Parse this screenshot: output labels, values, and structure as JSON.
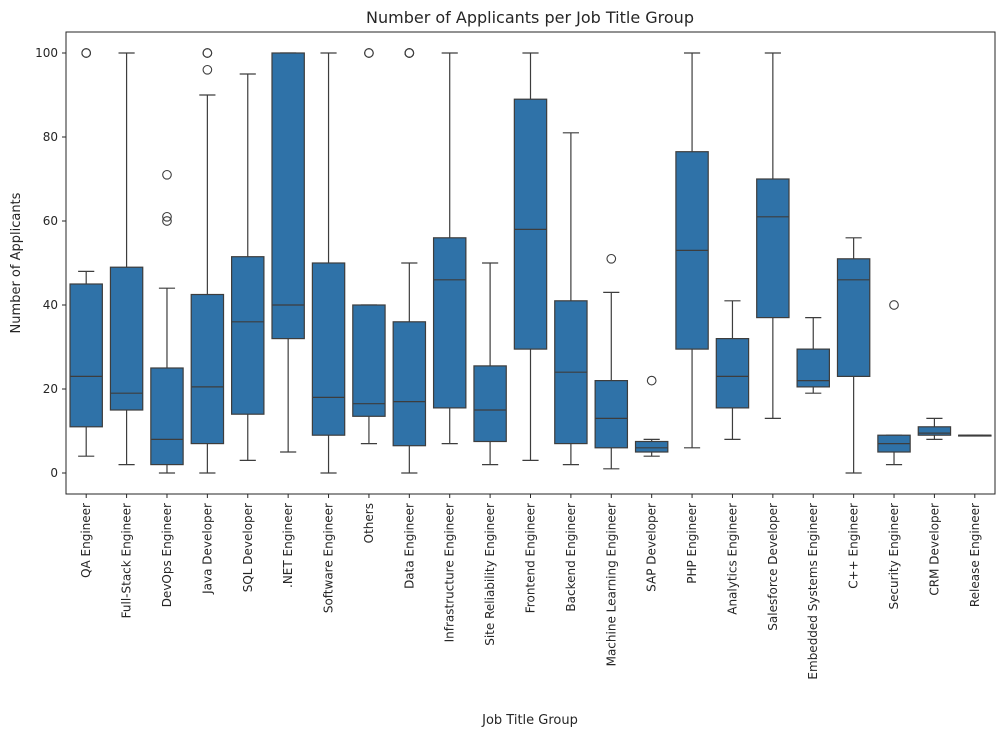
{
  "chart_data": {
    "type": "box",
    "title": "Number of Applicants per Job Title Group",
    "xlabel": "Job Title Group",
    "ylabel": "Number of Applicants",
    "ylim": [
      -5,
      105
    ],
    "yticks": [
      0,
      20,
      40,
      60,
      80,
      100
    ],
    "grid": false,
    "colors": {
      "box": "#2f72a8",
      "edge": "#3d3d3d",
      "background": "#ffffff"
    },
    "categories": [
      "QA Engineer",
      "Full-Stack Engineer",
      "DevOps Engineer",
      "Java Developer",
      "SQL Developer",
      ".NET Engineer",
      "Software Engineer",
      "Others",
      "Data Engineer",
      "Infrastructure Engineer",
      "Site Reliability Engineer",
      "Frontend Engineer",
      "Backend Engineer",
      "Machine Learning Engineer",
      "SAP Developer",
      "PHP Engineer",
      "Analytics Engineer",
      "Salesforce Developer",
      "Embedded Systems Engineer",
      "C++ Engineer",
      "Security Engineer",
      "CRM Developer",
      "Release Engineer"
    ],
    "boxes": [
      {
        "whislo": 4,
        "q1": 11,
        "med": 23,
        "q3": 45,
        "whishi": 48,
        "fliers": [
          100,
          100
        ]
      },
      {
        "whislo": 2,
        "q1": 15,
        "med": 19,
        "q3": 49,
        "whishi": 100,
        "fliers": []
      },
      {
        "whislo": 0,
        "q1": 2,
        "med": 8,
        "q3": 25,
        "whishi": 44,
        "fliers": [
          60,
          61,
          71
        ]
      },
      {
        "whislo": 0,
        "q1": 7,
        "med": 20.5,
        "q3": 42.5,
        "whishi": 90,
        "fliers": [
          96,
          100,
          100
        ]
      },
      {
        "whislo": 3,
        "q1": 14,
        "med": 36,
        "q3": 51.5,
        "whishi": 95,
        "fliers": []
      },
      {
        "whislo": 5,
        "q1": 32,
        "med": 40,
        "q3": 100,
        "whishi": 100,
        "fliers": []
      },
      {
        "whislo": 0,
        "q1": 9,
        "med": 18,
        "q3": 50,
        "whishi": 100,
        "fliers": []
      },
      {
        "whislo": 7,
        "q1": 13.5,
        "med": 16.5,
        "q3": 40,
        "whishi": 40,
        "fliers": [
          100,
          100
        ]
      },
      {
        "whislo": 0,
        "q1": 6.5,
        "med": 17,
        "q3": 36,
        "whishi": 50,
        "fliers": [
          100,
          100,
          100
        ]
      },
      {
        "whislo": 7,
        "q1": 15.5,
        "med": 46,
        "q3": 56,
        "whishi": 100,
        "fliers": []
      },
      {
        "whislo": 2,
        "q1": 7.5,
        "med": 15,
        "q3": 25.5,
        "whishi": 50,
        "fliers": []
      },
      {
        "whislo": 3,
        "q1": 29.5,
        "med": 58,
        "q3": 89,
        "whishi": 100,
        "fliers": []
      },
      {
        "whislo": 2,
        "q1": 7,
        "med": 24,
        "q3": 41,
        "whishi": 81,
        "fliers": []
      },
      {
        "whislo": 1,
        "q1": 6,
        "med": 13,
        "q3": 22,
        "whishi": 43,
        "fliers": [
          51
        ]
      },
      {
        "whislo": 4,
        "q1": 5,
        "med": 6,
        "q3": 7.5,
        "whishi": 8,
        "fliers": [
          22
        ]
      },
      {
        "whislo": 6,
        "q1": 29.5,
        "med": 53,
        "q3": 76.5,
        "whishi": 100,
        "fliers": []
      },
      {
        "whislo": 8,
        "q1": 15.5,
        "med": 23,
        "q3": 32,
        "whishi": 41,
        "fliers": []
      },
      {
        "whislo": 13,
        "q1": 37,
        "med": 61,
        "q3": 70,
        "whishi": 100,
        "fliers": []
      },
      {
        "whislo": 19,
        "q1": 20.5,
        "med": 22,
        "q3": 29.5,
        "whishi": 37,
        "fliers": []
      },
      {
        "whislo": 0,
        "q1": 23,
        "med": 46,
        "q3": 51,
        "whishi": 56,
        "fliers": []
      },
      {
        "whislo": 2,
        "q1": 5,
        "med": 7,
        "q3": 9,
        "whishi": 9,
        "fliers": [
          40
        ]
      },
      {
        "whislo": 8,
        "q1": 9,
        "med": 9.5,
        "q3": 11,
        "whishi": 13,
        "fliers": []
      },
      {
        "whislo": 9,
        "q1": 9,
        "med": 9,
        "q3": 9,
        "whishi": 9,
        "fliers": []
      }
    ]
  }
}
